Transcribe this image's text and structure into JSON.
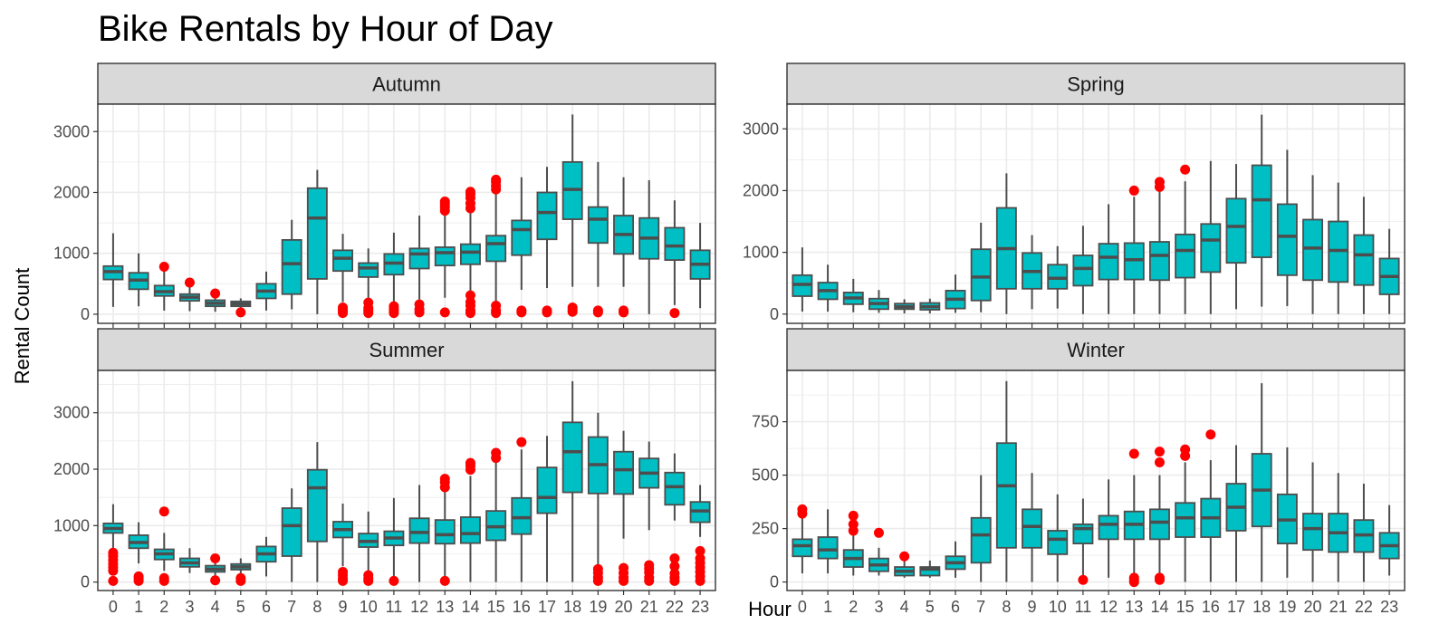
{
  "chart_data": {
    "type": "boxplot",
    "title": "Bike Rentals by Hour of Day",
    "xlabel": "Hour",
    "ylabel": "Rental Count",
    "colors": {
      "box_fill": "#00BFC4",
      "box_line": "#4D4D4D",
      "outlier": "#FF0000",
      "strip_fill": "#D9D9D9",
      "grid": "#EBEBEB",
      "panel_border": "#333333"
    },
    "hours": [
      "0",
      "1",
      "2",
      "3",
      "4",
      "5",
      "6",
      "7",
      "8",
      "9",
      "10",
      "11",
      "12",
      "13",
      "14",
      "15",
      "16",
      "17",
      "18",
      "19",
      "20",
      "21",
      "22",
      "23"
    ],
    "panels": [
      {
        "name": "Autumn",
        "ylim": [
          -150,
          3450
        ],
        "yticks": [
          0,
          1000,
          2000,
          3000
        ],
        "stats": [
          [
            120,
            570,
            700,
            790,
            1330
          ],
          [
            130,
            410,
            560,
            680,
            1000
          ],
          [
            60,
            300,
            370,
            470,
            780
          ],
          [
            50,
            220,
            280,
            330,
            500
          ],
          [
            40,
            130,
            180,
            230,
            380
          ],
          [
            20,
            130,
            170,
            210,
            260
          ],
          [
            60,
            260,
            380,
            500,
            700
          ],
          [
            80,
            330,
            830,
            1220,
            1550
          ],
          [
            0,
            580,
            1580,
            2070,
            2370
          ],
          [
            200,
            710,
            920,
            1050,
            1320
          ],
          [
            200,
            610,
            760,
            840,
            1080
          ],
          [
            180,
            650,
            840,
            990,
            1340
          ],
          [
            240,
            750,
            990,
            1080,
            1620
          ],
          [
            270,
            800,
            1010,
            1100,
            1930
          ],
          [
            0,
            820,
            1020,
            1150,
            1950
          ],
          [
            0,
            870,
            1160,
            1290,
            2120
          ],
          [
            400,
            970,
            1390,
            1540,
            2250
          ],
          [
            430,
            1230,
            1670,
            2000,
            2420
          ],
          [
            450,
            1560,
            2050,
            2500,
            3280
          ],
          [
            450,
            1170,
            1560,
            1760,
            2500
          ],
          [
            450,
            990,
            1310,
            1620,
            2250
          ],
          [
            0,
            910,
            1250,
            1580,
            2200
          ],
          [
            150,
            890,
            1120,
            1420,
            1870
          ],
          [
            100,
            580,
            820,
            1050,
            1500
          ]
        ],
        "outliers": [
          [],
          [],
          [
            780
          ],
          [
            520
          ],
          [
            340
          ],
          [
            30
          ],
          [],
          [],
          [],
          [
            20,
            50,
            80,
            110
          ],
          [
            20,
            60,
            100,
            190
          ],
          [
            20,
            60,
            90,
            130
          ],
          [
            30,
            80,
            160
          ],
          [
            30,
            1700,
            1760,
            1810,
            1850
          ],
          [
            20,
            60,
            140,
            200,
            310,
            1740,
            1820,
            1910,
            1970,
            2010
          ],
          [
            20,
            60,
            140,
            2050,
            2110,
            2170,
            2210
          ],
          [
            30,
            60
          ],
          [
            30,
            60
          ],
          [
            40,
            70,
            110
          ],
          [
            30,
            60
          ],
          [
            30,
            60
          ],
          [],
          [
            20
          ],
          []
        ]
      },
      {
        "name": "Spring",
        "ylim": [
          -150,
          3400
        ],
        "yticks": [
          0,
          1000,
          2000,
          3000
        ],
        "stats": [
          [
            40,
            290,
            480,
            630,
            1080
          ],
          [
            40,
            240,
            380,
            510,
            800
          ],
          [
            30,
            160,
            260,
            350,
            570
          ],
          [
            20,
            80,
            170,
            250,
            390
          ],
          [
            10,
            80,
            120,
            170,
            240
          ],
          [
            10,
            70,
            120,
            180,
            250
          ],
          [
            20,
            90,
            240,
            380,
            640
          ],
          [
            30,
            220,
            600,
            1050,
            1480
          ],
          [
            0,
            410,
            1060,
            1720,
            2280
          ],
          [
            80,
            410,
            690,
            990,
            1280
          ],
          [
            90,
            410,
            580,
            800,
            1100
          ],
          [
            0,
            460,
            740,
            950,
            1430
          ],
          [
            0,
            560,
            920,
            1140,
            1780
          ],
          [
            0,
            560,
            880,
            1150,
            1900
          ],
          [
            0,
            550,
            950,
            1170,
            1990
          ],
          [
            0,
            590,
            1030,
            1290,
            2150
          ],
          [
            0,
            680,
            1200,
            1460,
            2480
          ],
          [
            80,
            830,
            1420,
            1870,
            2430
          ],
          [
            120,
            920,
            1850,
            2410,
            3230
          ],
          [
            130,
            630,
            1260,
            1780,
            2660
          ],
          [
            0,
            550,
            1070,
            1530,
            2250
          ],
          [
            0,
            520,
            1030,
            1500,
            2130
          ],
          [
            0,
            470,
            960,
            1280,
            1900
          ],
          [
            0,
            320,
            610,
            900,
            1380
          ]
        ],
        "outliers": [
          [],
          [],
          [],
          [],
          [],
          [],
          [],
          [],
          [],
          [],
          [],
          [],
          [],
          [
            2000
          ],
          [
            2060,
            2140
          ],
          [
            2340
          ],
          [],
          [],
          [],
          [],
          [],
          [],
          [],
          []
        ]
      },
      {
        "name": "Summer",
        "ylim": [
          -150,
          3750
        ],
        "yticks": [
          0,
          1000,
          2000,
          3000
        ],
        "stats": [
          [
            600,
            870,
            950,
            1040,
            1380
          ],
          [
            330,
            600,
            700,
            830,
            1060
          ],
          [
            200,
            400,
            500,
            580,
            870
          ],
          [
            160,
            270,
            340,
            420,
            600
          ],
          [
            100,
            180,
            230,
            290,
            430
          ],
          [
            100,
            220,
            270,
            320,
            420
          ],
          [
            100,
            360,
            500,
            630,
            800
          ],
          [
            0,
            460,
            1000,
            1310,
            1660
          ],
          [
            0,
            720,
            1670,
            1990,
            2480
          ],
          [
            280,
            790,
            930,
            1070,
            1390
          ],
          [
            200,
            620,
            720,
            860,
            1250
          ],
          [
            0,
            650,
            780,
            900,
            1490
          ],
          [
            0,
            690,
            880,
            1130,
            1720
          ],
          [
            0,
            680,
            840,
            1100,
            1630
          ],
          [
            0,
            690,
            860,
            1150,
            1880
          ],
          [
            0,
            740,
            980,
            1260,
            2130
          ],
          [
            0,
            850,
            1140,
            1490,
            2350
          ],
          [
            0,
            1220,
            1500,
            2030,
            2590
          ],
          [
            0,
            1590,
            2310,
            2830,
            3560
          ],
          [
            0,
            1570,
            2080,
            2570,
            3000
          ],
          [
            770,
            1560,
            1990,
            2310,
            2680
          ],
          [
            920,
            1670,
            1930,
            2190,
            2490
          ],
          [
            1090,
            1370,
            1690,
            1940,
            2280
          ],
          [
            800,
            1060,
            1260,
            1420,
            1720
          ]
        ],
        "outliers": [
          [
            20,
            200,
            260,
            320,
            390,
            460,
            520
          ],
          [
            20,
            70,
            100
          ],
          [
            20,
            70,
            1250
          ],
          [],
          [
            30,
            420
          ],
          [
            20,
            70
          ],
          [],
          [],
          [],
          [
            20,
            60,
            120,
            180
          ],
          [
            20,
            60,
            120
          ],
          [
            20
          ],
          [],
          [
            20,
            1680,
            1770,
            1830
          ],
          [
            1990,
            2060,
            2110
          ],
          [
            2200,
            2290
          ],
          [
            2480
          ],
          [],
          [],
          [
            20,
            80,
            160,
            230
          ],
          [
            20,
            80,
            160,
            250
          ],
          [
            20,
            80,
            170,
            240,
            300
          ],
          [
            20,
            80,
            150,
            280,
            420
          ],
          [
            20,
            100,
            180,
            260,
            340,
            420,
            550
          ]
        ]
      },
      {
        "name": "Winter",
        "ylim": [
          -40,
          990
        ],
        "yticks": [
          0,
          250,
          500,
          750
        ],
        "stats": [
          [
            40,
            120,
            170,
            200,
            300
          ],
          [
            40,
            110,
            150,
            210,
            340
          ],
          [
            30,
            70,
            110,
            150,
            220
          ],
          [
            30,
            50,
            80,
            110,
            160
          ],
          [
            20,
            30,
            50,
            70,
            100
          ],
          [
            20,
            30,
            60,
            70,
            100
          ],
          [
            20,
            60,
            90,
            120,
            190
          ],
          [
            0,
            90,
            220,
            300,
            500
          ],
          [
            0,
            160,
            450,
            650,
            940
          ],
          [
            0,
            160,
            260,
            340,
            510
          ],
          [
            0,
            130,
            200,
            240,
            410
          ],
          [
            20,
            180,
            250,
            270,
            390
          ],
          [
            20,
            200,
            270,
            310,
            480
          ],
          [
            20,
            200,
            270,
            330,
            500
          ],
          [
            30,
            200,
            280,
            340,
            500
          ],
          [
            0,
            210,
            300,
            370,
            560
          ],
          [
            0,
            210,
            300,
            390,
            570
          ],
          [
            0,
            240,
            350,
            460,
            640
          ],
          [
            0,
            260,
            430,
            600,
            930
          ],
          [
            20,
            180,
            290,
            410,
            630
          ],
          [
            0,
            150,
            250,
            320,
            560
          ],
          [
            0,
            140,
            230,
            320,
            510
          ],
          [
            0,
            140,
            220,
            290,
            460
          ],
          [
            30,
            110,
            170,
            230,
            360
          ]
        ],
        "outliers": [
          [
            320,
            340
          ],
          [],
          [
            240,
            270,
            310
          ],
          [
            230
          ],
          [
            120
          ],
          [],
          [],
          [],
          [],
          [],
          [],
          [
            10
          ],
          [],
          [
            0,
            10,
            20,
            600
          ],
          [
            10,
            20,
            560,
            610
          ],
          [
            590,
            620
          ],
          [
            690
          ],
          [],
          [],
          [],
          [],
          [],
          [],
          []
        ]
      }
    ]
  }
}
